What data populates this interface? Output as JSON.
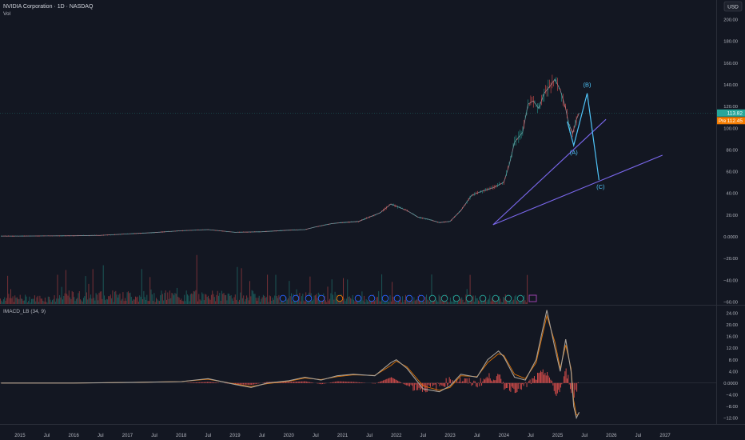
{
  "header": {
    "title": "NVIDIA Corporation · 1D · NASDAQ",
    "vol_label": "Vol",
    "currency": "USD"
  },
  "indicator": {
    "label": "IMACD_LB (34, 9)"
  },
  "price_tags": {
    "last": "113.82",
    "pre_label": "Pre",
    "pre_value": "112.45"
  },
  "wave_labels": [
    "(A)",
    "(B)",
    "(C)"
  ],
  "colors": {
    "background": "#131722",
    "axis_text": "#b2b5be",
    "trendline": "#7b68ee",
    "wave": "#4fc3f7",
    "last_tag": "#26a69a",
    "pre_tag": "#f57c00",
    "volume_up": "#26a69a",
    "volume_down": "#ef5350",
    "macd_line": "#a8a29a",
    "signal_line": "#f57c00",
    "histogram": "#ef5350"
  },
  "chart_data": [
    {
      "type": "line",
      "title": "NVIDIA Corporation · 1D · NASDAQ",
      "y_scale": "linear",
      "y_ticks": [
        200,
        180,
        160,
        140,
        120,
        100,
        80,
        60,
        40,
        20,
        0,
        -20,
        -40,
        -60
      ],
      "y_tick_labels": [
        "200.00",
        "180.00",
        "160.00",
        "140.00",
        "120.00",
        "100.00",
        "80.00",
        "60.00",
        "40.00",
        "20.00",
        "0.0000",
        "−20.00",
        "−40.00",
        "−60.00"
      ],
      "ylim": [
        -62,
        212
      ],
      "x_ticks": [
        "2015",
        "Jul",
        "2016",
        "Jul",
        "2017",
        "Jul",
        "2018",
        "Jul",
        "2019",
        "Jul",
        "2020",
        "Jul",
        "2021",
        "Jul",
        "2022",
        "Jul",
        "2023",
        "Jul",
        "2024",
        "Jul",
        "2025",
        "Jul",
        "2026",
        "Jul",
        "2027"
      ],
      "x_tick_years": [
        2015,
        2015.5,
        2016,
        2016.5,
        2017,
        2017.5,
        2018,
        2018.5,
        2019,
        2019.5,
        2020,
        2020.5,
        2021,
        2021.5,
        2022,
        2022.5,
        2023,
        2023.5,
        2024,
        2024.5,
        2025,
        2025.5,
        2026,
        2026.5,
        2027
      ],
      "xlim": [
        2014.63,
        2027.95
      ],
      "series": [
        {
          "name": "",
          "x": [
            2014.65,
            2015.0,
            2015.5,
            2016.0,
            2016.5,
            2017.0,
            2017.5,
            2018.0,
            2018.5,
            2019.0,
            2019.5,
            2020.0,
            2020.3,
            2020.5,
            2020.8,
            2021.0,
            2021.3,
            2021.5,
            2021.7,
            2021.9,
            2022.0,
            2022.2,
            2022.4,
            2022.6,
            2022.8,
            2023.0,
            2023.2,
            2023.4,
            2023.6,
            2023.8,
            2024.0,
            2024.1,
            2024.2,
            2024.35,
            2024.45,
            2024.55,
            2024.65,
            2024.75,
            2024.85,
            2024.95,
            2025.0,
            2025.05,
            2025.15,
            2025.2,
            2025.28,
            2025.35,
            2025.4
          ],
          "y": [
            0.5,
            0.5,
            0.7,
            0.8,
            1.2,
            2.5,
            3.8,
            5.5,
            6.5,
            4,
            4.5,
            6,
            6.5,
            9,
            12,
            13,
            14,
            18,
            22,
            30,
            28,
            24,
            18,
            16,
            13,
            14,
            24,
            38,
            42,
            45,
            50,
            66,
            87,
            96,
            122,
            125,
            118,
            132,
            138,
            145,
            140,
            135,
            118,
            105,
            95,
            108,
            113.82
          ]
        }
      ],
      "trendlines": [
        {
          "name": "",
          "x": [
            2023.8,
            2025.9
          ],
          "y": [
            11,
            108
          ]
        },
        {
          "name": "",
          "x": [
            2023.8,
            2026.95
          ],
          "y": [
            11,
            75
          ]
        }
      ],
      "waves": [
        {
          "label": "(A)",
          "x": 2025.3,
          "y": 84
        },
        {
          "label": "(B)",
          "x": 2025.55,
          "y": 132
        },
        {
          "label": "(C)",
          "x": 2025.77,
          "y": 52
        }
      ]
    },
    {
      "type": "line",
      "title": "IMACD_LB (34, 9)",
      "y_ticks": [
        24,
        20,
        16,
        12,
        8,
        4,
        0,
        -4,
        -8,
        -12
      ],
      "y_tick_labels": [
        "24.00",
        "20.00",
        "16.00",
        "12.00",
        "8.00",
        "4.00",
        "0.0000",
        "−4.00",
        "−8.00",
        "−12.00"
      ],
      "ylim": [
        -13.5,
        26
      ],
      "series": [
        {
          "name": "",
          "x": [
            2014.65,
            2016.0,
            2017.0,
            2018.0,
            2018.5,
            2019.0,
            2019.3,
            2019.6,
            2020.0,
            2020.3,
            2020.6,
            2020.9,
            2021.2,
            2021.6,
            2021.9,
            2022.0,
            2022.2,
            2022.5,
            2022.8,
            2023.0,
            2023.2,
            2023.5,
            2023.7,
            2023.9,
            2024.0,
            2024.2,
            2024.4,
            2024.6,
            2024.8,
            2024.95,
            2025.05,
            2025.15,
            2025.25,
            2025.3,
            2025.35,
            2025.4
          ],
          "y": [
            0,
            0,
            0.2,
            0.5,
            1.5,
            -0.5,
            -1.5,
            0,
            0.8,
            2,
            1,
            2.5,
            3,
            2.5,
            7,
            8,
            5,
            -2,
            -3,
            -1,
            3,
            2,
            8,
            11,
            9,
            2,
            1,
            8,
            25,
            12,
            4,
            15,
            4,
            -8,
            -12,
            -10
          ]
        },
        {
          "name": "",
          "x": [
            2014.65,
            2016.0,
            2017.0,
            2018.0,
            2018.5,
            2019.0,
            2019.3,
            2019.6,
            2020.0,
            2020.3,
            2020.6,
            2020.9,
            2021.2,
            2021.6,
            2021.9,
            2022.0,
            2022.2,
            2022.5,
            2022.8,
            2023.0,
            2023.2,
            2023.5,
            2023.7,
            2023.9,
            2024.0,
            2024.2,
            2024.4,
            2024.6,
            2024.8,
            2024.95,
            2025.05,
            2025.15,
            2025.25,
            2025.3,
            2025.35,
            2025.4
          ],
          "y": [
            0,
            0,
            0.2,
            0.5,
            1.3,
            -0.3,
            -1.2,
            -0.2,
            0.6,
            1.7,
            1.2,
            2.2,
            2.8,
            2.6,
            6,
            7.5,
            5.5,
            -1,
            -2.5,
            -1.5,
            2.5,
            2.2,
            7,
            10,
            9.5,
            3,
            1.5,
            7,
            23,
            14,
            5,
            13,
            5,
            -6,
            -11,
            -10.5
          ]
        }
      ]
    }
  ]
}
